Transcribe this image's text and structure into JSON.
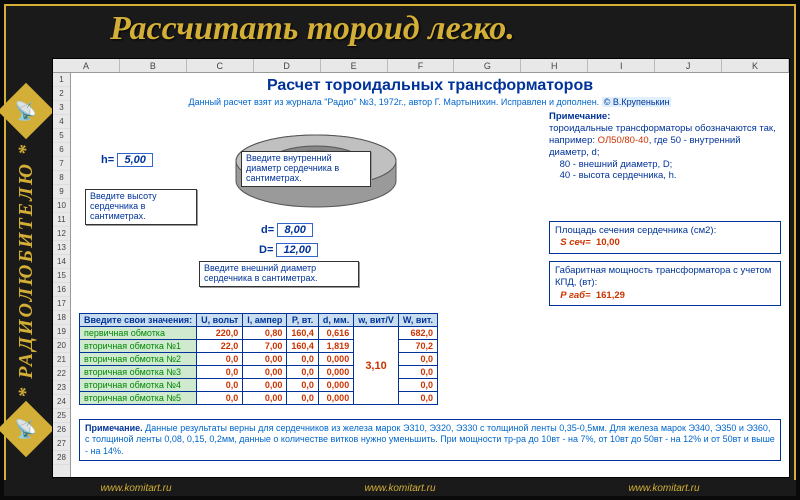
{
  "page": {
    "title": "Рассчитать тороид легко.",
    "sidebar_text": "* РАДИОЛЮБИТЕЛЮ *",
    "footer_link": "www.komitart.ru"
  },
  "columns": [
    "A",
    "B",
    "C",
    "D",
    "E",
    "F",
    "G",
    "H",
    "I",
    "J",
    "K"
  ],
  "rows": [
    "1",
    "2",
    "3",
    "4",
    "5",
    "6",
    "7",
    "8",
    "9",
    "10",
    "11",
    "12",
    "13",
    "14",
    "15",
    "16",
    "17",
    "18",
    "19",
    "20",
    "21",
    "22",
    "23",
    "24",
    "25",
    "26",
    "27",
    "28"
  ],
  "calc": {
    "title": "Расчет тороидальных трансформаторов",
    "subtitle_a": "Данный расчет взят из журнала \"Радио\" №3, 1972г., автор Г. Мартынихин. Исправлен и дополнен.",
    "subtitle_author": "© В.Крупенькин"
  },
  "dims": {
    "h_label": "h=",
    "h": "5,00",
    "d_label": "d=",
    "d": "8,00",
    "D_label": "D=",
    "D": "12,00",
    "callout_h": "Введите высоту сердечника в сантиметрах.",
    "callout_d": "Введите внутренний диаметр сердечника в сантиметрах.",
    "callout_D": "Введите внешний диаметр сердечника в сантиметрах."
  },
  "torus": {
    "outer_fill": "#b5b5b5",
    "outer_stroke": "#555",
    "inner_fill": "#9a9a9a",
    "line_color": "#003399"
  },
  "notes": {
    "heading": "Примечание:",
    "body1": "тороидальные трансформаторы обозначаются так, например:",
    "example": "ОЛ50/80-40",
    "body2": ", где 50 - внутренний диаметр, d;",
    "body3": "80 - внешний диаметр, D;",
    "body4": "40 - высота сердечника, h."
  },
  "results": {
    "r1_title": "Площадь сечения сердечника (см2):",
    "r1_label": "S сеч=",
    "r1_val": "10,00",
    "r2_title": "Габаритная мощность трансформатора с учетом КПД, (вт):",
    "r2_label": "P габ=",
    "r2_val": "161,29"
  },
  "table": {
    "headers": [
      "Введите свои значения:",
      "U, вольт",
      "I, ампер",
      "P, вт.",
      "d, мм.",
      "w, вит/V",
      "W, вит."
    ],
    "merged_w": "3,10",
    "rows": [
      {
        "name": "первичная обмотка",
        "u": "220,0",
        "i": "0,80",
        "p": "160,4",
        "d": "0,616",
        "W": "682,0"
      },
      {
        "name": "вторичная обмотка №1",
        "u": "22,0",
        "i": "7,00",
        "p": "160,4",
        "d": "1,819",
        "W": "70,2"
      },
      {
        "name": "вторичная обмотка №2",
        "u": "0,0",
        "i": "0,00",
        "p": "0,0",
        "d": "0,000",
        "W": "0,0"
      },
      {
        "name": "вторичная обмотка №3",
        "u": "0,0",
        "i": "0,00",
        "p": "0,0",
        "d": "0,000",
        "W": "0,0"
      },
      {
        "name": "вторичная обмотка №4",
        "u": "0,0",
        "i": "0,00",
        "p": "0,0",
        "d": "0,000",
        "W": "0,0"
      },
      {
        "name": "вторичная обмотка №5",
        "u": "0,0",
        "i": "0,00",
        "p": "0,0",
        "d": "0,000",
        "W": "0,0"
      }
    ]
  },
  "footnote": {
    "label": "Примечание.",
    "text": "Данные результаты верны для сердечников из железа марок Э310, Э320, Э330 с толщиной ленты 0,35-0,5мм. Для железа марок Э340, Э350 и Э360, с толщиной ленты 0,08, 0,15, 0,2мм, данные о количестве витков нужно уменьшить. При мощности тр-ра до 10вт - на 7%, от 10вт до 50вт - на 12% и от 50вт и выше - на 14%."
  }
}
